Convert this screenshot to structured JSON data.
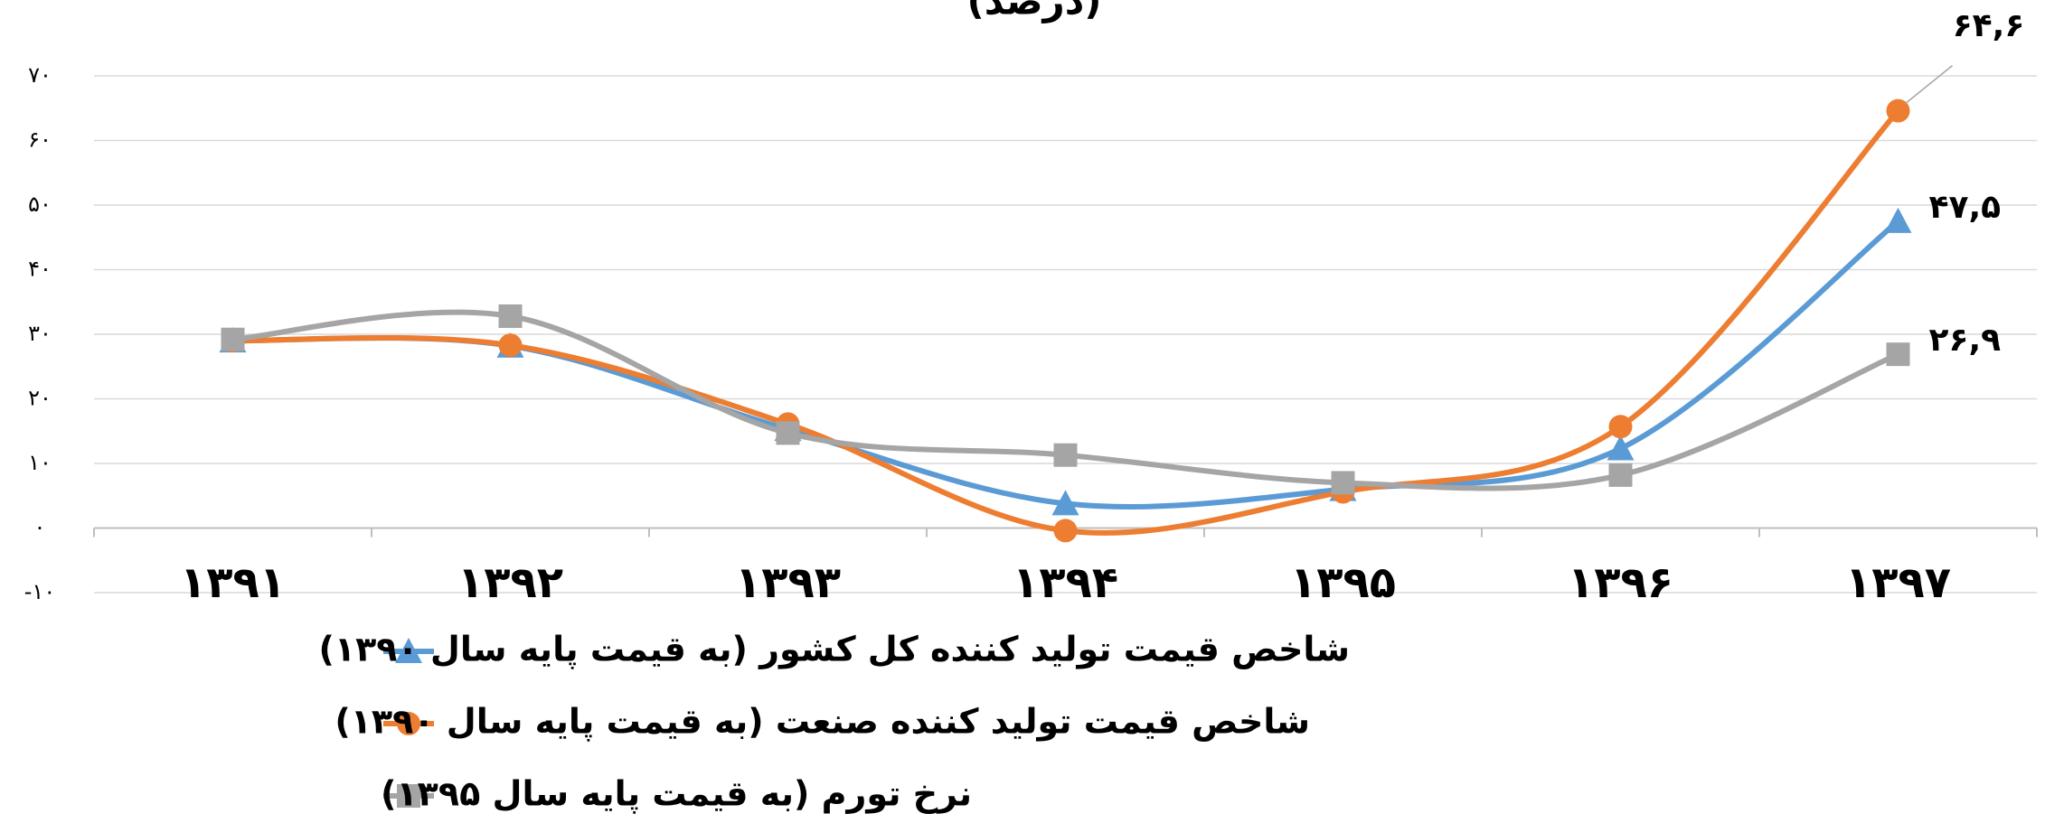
{
  "chart_data": {
    "type": "line",
    "title": "(درصد)",
    "categories": [
      "۱۳۹۱",
      "۱۳۹۲",
      "۱۳۹۳",
      "۱۳۹۴",
      "۱۳۹۵",
      "۱۳۹۶",
      "۱۳۹۷"
    ],
    "series": [
      {
        "name": "شاخص قیمت تولید کننده کل کشور (به قیمت پایه سال ۱۳۹۰)",
        "color": "#5b9bd5",
        "marker": "triangle",
        "values": [
          29.0,
          28.2,
          15.3,
          3.8,
          6.0,
          12.3,
          47.5
        ],
        "value_labels": [
          null,
          null,
          null,
          null,
          null,
          null,
          "۴۷,۵"
        ]
      },
      {
        "name": "شاخص قیمت تولید کننده صنعت (به قیمت پایه سال ۱۳۹۰)",
        "color": "#ed7d31",
        "marker": "circle",
        "values": [
          29.0,
          28.3,
          16.1,
          -0.4,
          5.6,
          15.7,
          64.6
        ],
        "value_labels": [
          null,
          null,
          null,
          null,
          null,
          null,
          "۶۴,۶"
        ]
      },
      {
        "name": "نرخ تورم (به قیمت پایه سال ۱۳۹۵)",
        "color": "#a5a5a5",
        "marker": "square",
        "values": [
          29.2,
          32.8,
          14.7,
          11.3,
          7.0,
          8.2,
          26.9
        ],
        "value_labels": [
          null,
          null,
          null,
          null,
          null,
          null,
          "۲۶,۹"
        ]
      }
    ],
    "ylim": [
      -10,
      70
    ],
    "yticks": [
      {
        "value": -10,
        "label": "-۱۰"
      },
      {
        "value": 0,
        "label": "۰"
      },
      {
        "value": 10,
        "label": "۱۰"
      },
      {
        "value": 20,
        "label": "۲۰"
      },
      {
        "value": 30,
        "label": "۳۰"
      },
      {
        "value": 40,
        "label": "۴۰"
      },
      {
        "value": 50,
        "label": "۵۰"
      },
      {
        "value": 60,
        "label": "۶۰"
      },
      {
        "value": 70,
        "label": "۷۰"
      }
    ],
    "grid": true
  }
}
